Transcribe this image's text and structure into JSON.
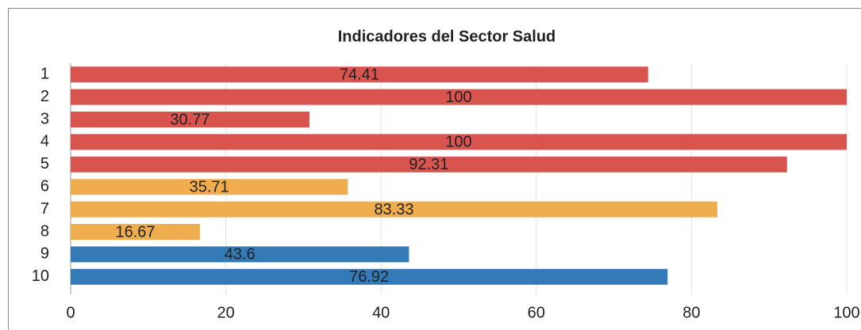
{
  "chart_data": {
    "type": "bar",
    "orientation": "horizontal",
    "title": "Indicadores del Sector Salud",
    "categories": [
      "1",
      "2",
      "3",
      "4",
      "5",
      "6",
      "7",
      "8",
      "9",
      "10"
    ],
    "values": [
      74.41,
      100,
      30.77,
      100,
      92.31,
      35.71,
      83.33,
      16.67,
      43.6,
      76.92
    ],
    "colors": [
      "#d9534f",
      "#d9534f",
      "#d9534f",
      "#d9534f",
      "#d9534f",
      "#f0ad4e",
      "#f0ad4e",
      "#f0ad4e",
      "#337ab7",
      "#337ab7"
    ],
    "xlim": [
      0,
      100
    ],
    "xticks": [
      0,
      20,
      40,
      60,
      80,
      100
    ],
    "grid": true
  }
}
